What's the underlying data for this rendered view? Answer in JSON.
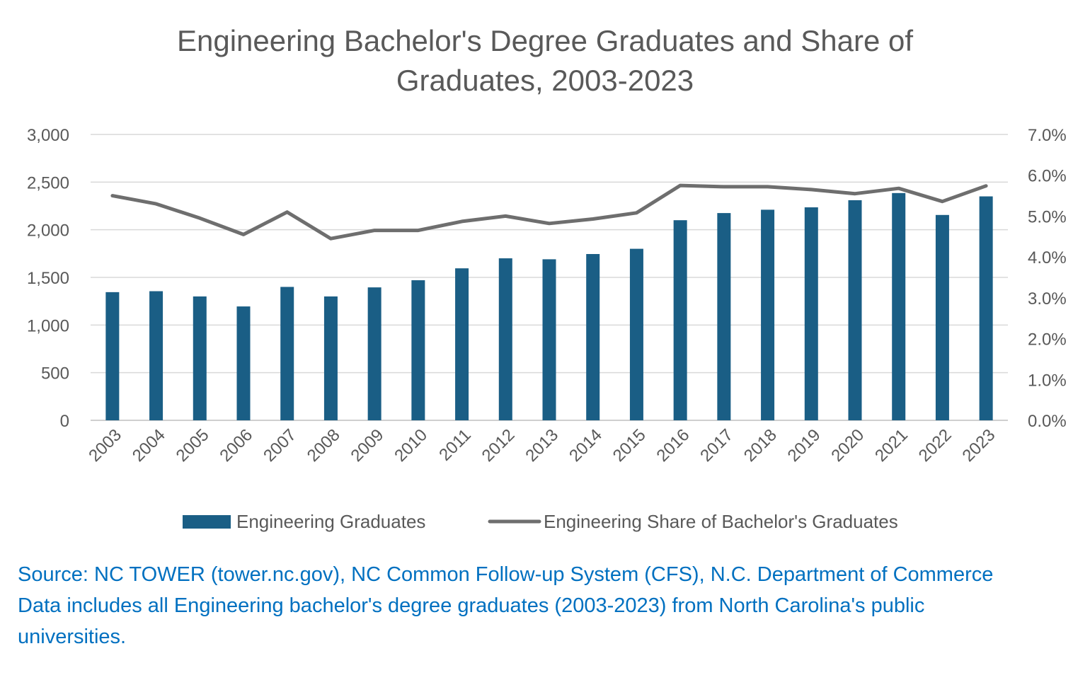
{
  "chart_data": {
    "type": "bar",
    "title_lines": [
      "Engineering Bachelor's Degree Graduates and Share of",
      "Graduates, 2003-2023"
    ],
    "categories": [
      "2003",
      "2004",
      "2005",
      "2006",
      "2007",
      "2008",
      "2009",
      "2010",
      "2011",
      "2012",
      "2013",
      "2014",
      "2015",
      "2016",
      "2017",
      "2018",
      "2019",
      "2020",
      "2021",
      "2022",
      "2023"
    ],
    "series": [
      {
        "name": "Engineering Graduates",
        "type": "bar",
        "axis": "left",
        "color": "#1a5e85",
        "values": [
          1345,
          1355,
          1300,
          1195,
          1400,
          1300,
          1395,
          1470,
          1595,
          1700,
          1690,
          1745,
          1800,
          2100,
          2175,
          2210,
          2235,
          2310,
          2385,
          2155,
          2350
        ]
      },
      {
        "name": "Engineering Share of Bachelor's Graduates",
        "type": "line",
        "axis": "right",
        "color": "#6e6e6e",
        "values": [
          5.5,
          5.3,
          4.95,
          4.55,
          5.1,
          4.45,
          4.65,
          4.65,
          4.87,
          5.0,
          4.82,
          4.93,
          5.08,
          5.75,
          5.72,
          5.72,
          5.65,
          5.55,
          5.68,
          5.36,
          5.74
        ]
      }
    ],
    "left_axis": {
      "ylim": [
        0,
        3000
      ],
      "ticks": [
        "0",
        "500",
        "1,000",
        "1,500",
        "2,000",
        "2,500",
        "3,000"
      ]
    },
    "right_axis": {
      "ylim": [
        0,
        7
      ],
      "ticks": [
        "0.0%",
        "1.0%",
        "2.0%",
        "3.0%",
        "4.0%",
        "5.0%",
        "6.0%",
        "7.0%"
      ]
    },
    "grid": true,
    "legend": "bottom"
  },
  "notes": {
    "line1": "Source: NC TOWER (tower.nc.gov), NC Common Follow-up System (CFS), N.C. Department of Commerce",
    "line2": "Data includes all Engineering bachelor's degree graduates (2003-2023) from North Carolina's public",
    "line3": "universities."
  }
}
